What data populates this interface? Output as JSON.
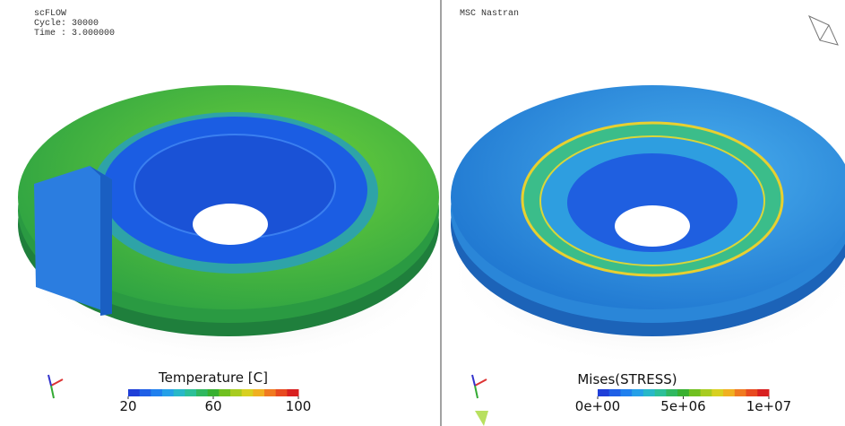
{
  "left": {
    "header": [
      "scFLOW",
      "Cycle: 30000",
      "Time : 3.000000"
    ],
    "legend": {
      "title": "Temperature [C]",
      "ticks": [
        "20",
        "60",
        "100"
      ]
    }
  },
  "right": {
    "header": [
      "MSC Nastran"
    ],
    "legend": {
      "title": "Mises(STRESS)",
      "ticks": [
        "0e+00",
        "5e+06",
        "1e+07"
      ]
    }
  }
}
